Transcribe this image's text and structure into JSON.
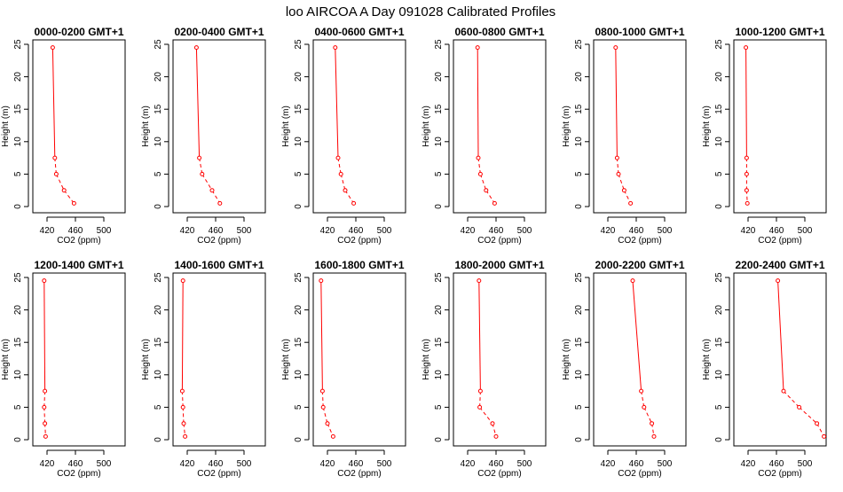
{
  "title": "loo AIRCOA A  Day 091028  Calibrated Profiles",
  "series_color": "#ff0000",
  "chart_data": [
    {
      "type": "line",
      "title": "0000-0200 GMT+1",
      "xlabel": "CO2 (ppm)",
      "ylabel": "Height (m)",
      "xlim": [
        400,
        530
      ],
      "ylim": [
        0,
        25
      ],
      "xticks": [
        420,
        460,
        500
      ],
      "yticks": [
        0,
        5,
        10,
        15,
        20,
        25
      ],
      "x": [
        428,
        431,
        433,
        444,
        458
      ],
      "y": [
        24.5,
        7.5,
        5,
        2.5,
        0.5
      ]
    },
    {
      "type": "line",
      "title": "0200-0400 GMT+1",
      "xlabel": "CO2 (ppm)",
      "ylabel": "Height (m)",
      "xlim": [
        400,
        530
      ],
      "ylim": [
        0,
        25
      ],
      "xticks": [
        420,
        460,
        500
      ],
      "yticks": [
        0,
        5,
        10,
        15,
        20,
        25
      ],
      "x": [
        433,
        437,
        441,
        455,
        466
      ],
      "y": [
        24.5,
        7.5,
        5,
        2.5,
        0.5
      ]
    },
    {
      "type": "line",
      "title": "0400-0600 GMT+1",
      "xlabel": "CO2 (ppm)",
      "ylabel": "Height (m)",
      "xlim": [
        400,
        530
      ],
      "ylim": [
        0,
        25
      ],
      "xticks": [
        420,
        460,
        500
      ],
      "yticks": [
        0,
        5,
        10,
        15,
        20,
        25
      ],
      "x": [
        431,
        435,
        439,
        445,
        457
      ],
      "y": [
        24.5,
        7.5,
        5,
        2.5,
        0.5
      ]
    },
    {
      "type": "line",
      "title": "0600-0800 GMT+1",
      "xlabel": "CO2 (ppm)",
      "ylabel": "Height (m)",
      "xlim": [
        400,
        530
      ],
      "ylim": [
        0,
        25
      ],
      "xticks": [
        420,
        460,
        500
      ],
      "yticks": [
        0,
        5,
        10,
        15,
        20,
        25
      ],
      "x": [
        434,
        435,
        438,
        446,
        458
      ],
      "y": [
        24.5,
        7.5,
        5,
        2.5,
        0.5
      ]
    },
    {
      "type": "line",
      "title": "0800-1000 GMT+1",
      "xlabel": "CO2 (ppm)",
      "ylabel": "Height (m)",
      "xlim": [
        400,
        530
      ],
      "ylim": [
        0,
        25
      ],
      "xticks": [
        420,
        460,
        500
      ],
      "yticks": [
        0,
        5,
        10,
        15,
        20,
        25
      ],
      "x": [
        431,
        433,
        435,
        443,
        452
      ],
      "y": [
        24.5,
        7.5,
        5,
        2.5,
        0.5
      ]
    },
    {
      "type": "line",
      "title": "1000-1200 GMT+1",
      "xlabel": "CO2 (ppm)",
      "ylabel": "Height (m)",
      "xlim": [
        400,
        530
      ],
      "ylim": [
        0,
        25
      ],
      "xticks": [
        420,
        460,
        500
      ],
      "yticks": [
        0,
        5,
        10,
        15,
        20,
        25
      ],
      "x": [
        417,
        418,
        418,
        418,
        419
      ],
      "y": [
        24.5,
        7.5,
        5,
        2.5,
        0.5
      ]
    },
    {
      "type": "line",
      "title": "1200-1400 GMT+1",
      "xlabel": "CO2 (ppm)",
      "ylabel": "Height (m)",
      "xlim": [
        400,
        530
      ],
      "ylim": [
        0,
        25
      ],
      "xticks": [
        420,
        460,
        500
      ],
      "yticks": [
        0,
        5,
        10,
        15,
        20,
        25
      ],
      "x": [
        416,
        417,
        416,
        417,
        418
      ],
      "y": [
        24.5,
        7.5,
        5,
        2.5,
        0.5
      ]
    },
    {
      "type": "line",
      "title": "1400-1600 GMT+1",
      "xlabel": "CO2 (ppm)",
      "ylabel": "Height (m)",
      "xlim": [
        400,
        530
      ],
      "ylim": [
        0,
        25
      ],
      "xticks": [
        420,
        460,
        500
      ],
      "yticks": [
        0,
        5,
        10,
        15,
        20,
        25
      ],
      "x": [
        414,
        413,
        414,
        415,
        417
      ],
      "y": [
        24.5,
        7.5,
        5,
        2.5,
        0.5
      ]
    },
    {
      "type": "line",
      "title": "1600-1800 GMT+1",
      "xlabel": "CO2 (ppm)",
      "ylabel": "Height (m)",
      "xlim": [
        400,
        530
      ],
      "ylim": [
        0,
        25
      ],
      "xticks": [
        420,
        460,
        500
      ],
      "yticks": [
        0,
        5,
        10,
        15,
        20,
        25
      ],
      "x": [
        411,
        413,
        414,
        420,
        428
      ],
      "y": [
        24.5,
        7.5,
        5,
        2.5,
        0.5
      ]
    },
    {
      "type": "line",
      "title": "1800-2000 GMT+1",
      "xlabel": "CO2 (ppm)",
      "ylabel": "Height (m)",
      "xlim": [
        400,
        530
      ],
      "ylim": [
        0,
        25
      ],
      "xticks": [
        420,
        460,
        500
      ],
      "yticks": [
        0,
        5,
        10,
        15,
        20,
        25
      ],
      "x": [
        436,
        438,
        437,
        455,
        460
      ],
      "y": [
        24.5,
        7.5,
        5,
        2.5,
        0.5
      ]
    },
    {
      "type": "line",
      "title": "2000-2200 GMT+1",
      "xlabel": "CO2 (ppm)",
      "ylabel": "Height (m)",
      "xlim": [
        400,
        530
      ],
      "ylim": [
        0,
        25
      ],
      "xticks": [
        420,
        460,
        500
      ],
      "yticks": [
        0,
        5,
        10,
        15,
        20,
        25
      ],
      "x": [
        455,
        467,
        471,
        482,
        485
      ],
      "y": [
        24.5,
        7.5,
        5,
        2.5,
        0.5
      ]
    },
    {
      "type": "line",
      "title": "2200-2400 GMT+1",
      "xlabel": "CO2 (ppm)",
      "ylabel": "Height (m)",
      "xlim": [
        400,
        530
      ],
      "ylim": [
        0,
        25
      ],
      "xticks": [
        420,
        460,
        500
      ],
      "yticks": [
        0,
        5,
        10,
        15,
        20,
        25
      ],
      "x": [
        462,
        470,
        492,
        517,
        527
      ],
      "y": [
        24.5,
        7.5,
        5,
        2.5,
        0.5
      ]
    }
  ]
}
